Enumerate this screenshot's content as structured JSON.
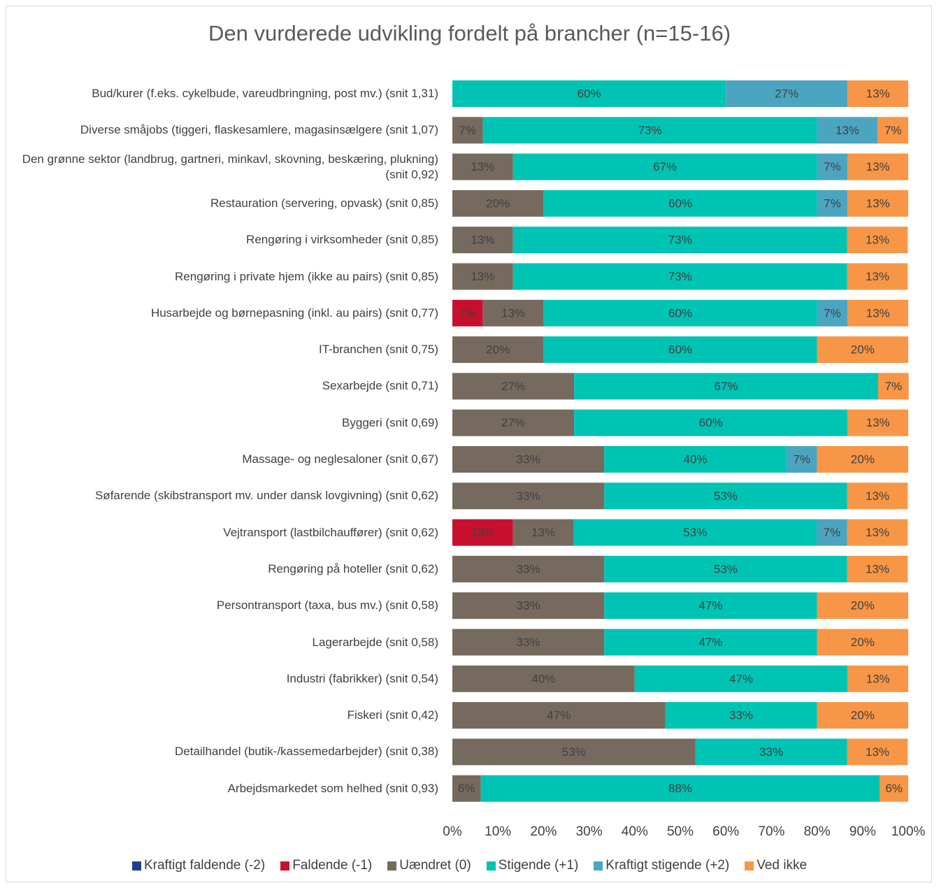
{
  "chart_data": {
    "type": "stacked_bar_horizontal",
    "title": "Den vurderede udvikling fordelt på brancher (n=15-16)",
    "categories": [
      "Bud/kurer (f.eks. cykelbude, vareudbringning, post mv.) (snit 1,31)",
      "Diverse småjobs (tiggeri, flaskesamlere, magasinsælgere (snit 1,07)",
      "Den grønne sektor (landbrug, gartneri, minkavl, skovning, beskæring, plukning) (snit 0,92)",
      "Restauration (servering, opvask) (snit 0,85)",
      "Rengøring i virksomheder (snit 0,85)",
      "Rengøring i private hjem (ikke au pairs) (snit 0,85)",
      "Husarbejde og børnepasning (inkl. au pairs) (snit 0,77)",
      "IT-branchen (snit 0,75)",
      "Sexarbejde (snit 0,71)",
      "Byggeri (snit 0,69)",
      "Massage- og neglesaloner (snit 0,67)",
      "Søfarende (skibstransport mv. under dansk lovgivning) (snit 0,62)",
      "Vejtransport (lastbilchauffører) (snit 0,62)",
      "Rengøring på hoteller (snit 0,62)",
      "Persontransport (taxa, bus mv.) (snit 0,58)",
      "Lagerarbejde (snit 0,58)",
      "Industri (fabrikker) (snit 0,54)",
      "Fiskeri (snit 0,42)",
      "Detailhandel (butik-/kassemedarbejder) (snit 0,38)",
      "Arbejdsmarkedet som helhed (snit 0,93)"
    ],
    "series": [
      {
        "name": "Kraftigt faldende (-2)",
        "color": "#1f3f8c",
        "values": [
          0,
          0,
          0,
          0,
          0,
          0,
          0,
          0,
          0,
          0,
          0,
          0,
          0,
          0,
          0,
          0,
          0,
          0,
          0,
          0
        ]
      },
      {
        "name": "Faldende (-1)",
        "color": "#c8102e",
        "values": [
          0,
          0,
          0,
          0,
          0,
          0,
          6.7,
          0,
          0,
          0,
          0,
          0,
          13.3,
          0,
          0,
          0,
          0,
          0,
          0,
          0
        ],
        "value_labels": [
          null,
          null,
          null,
          null,
          null,
          null,
          "7%",
          null,
          null,
          null,
          null,
          null,
          "13%",
          null,
          null,
          null,
          null,
          null,
          null,
          null
        ]
      },
      {
        "name": "Uændret (0)",
        "color": "#766a5f",
        "values": [
          0,
          6.7,
          13.3,
          20,
          13.3,
          13.3,
          13.3,
          20,
          26.7,
          26.7,
          33.3,
          33.3,
          13.3,
          33.3,
          33.3,
          33.3,
          40,
          46.7,
          53.3,
          6.25
        ],
        "value_labels": [
          null,
          "7%",
          "13%",
          "20%",
          "13%",
          "13%",
          "13%",
          "20%",
          "27%",
          "27%",
          "33%",
          "33%",
          "13%",
          "33%",
          "33%",
          "33%",
          "40%",
          "47%",
          "53%",
          "6%"
        ]
      },
      {
        "name": "Stigende (+1)",
        "color": "#00c4b3",
        "values": [
          60,
          73.3,
          66.7,
          60,
          73.3,
          73.3,
          60,
          60,
          66.7,
          60,
          40,
          53.3,
          53.3,
          53.3,
          46.7,
          46.7,
          46.7,
          33.3,
          33.3,
          87.5
        ],
        "value_labels": [
          "60%",
          "73%",
          "67%",
          "60%",
          "73%",
          "73%",
          "60%",
          "60%",
          "67%",
          "60%",
          "40%",
          "53%",
          "53%",
          "53%",
          "47%",
          "47%",
          "47%",
          "33%",
          "33%",
          "88%"
        ]
      },
      {
        "name": "Kraftigt stigende (+2)",
        "color": "#4ba5c1",
        "values": [
          26.7,
          13.3,
          6.7,
          6.7,
          0,
          0,
          6.7,
          0,
          0,
          0,
          6.7,
          0,
          6.7,
          0,
          0,
          0,
          0,
          0,
          0,
          0
        ],
        "value_labels": [
          "27%",
          "13%",
          "7%",
          "7%",
          null,
          null,
          "7%",
          null,
          null,
          null,
          "7%",
          null,
          "7%",
          null,
          null,
          null,
          null,
          null,
          null,
          null
        ]
      },
      {
        "name": "Ved ikke",
        "color": "#f79646",
        "values": [
          13.3,
          6.7,
          13.3,
          13.3,
          13.3,
          13.3,
          13.3,
          20,
          6.7,
          13.3,
          20,
          13.3,
          13.3,
          13.3,
          20,
          20,
          13.3,
          20,
          13.3,
          6.25
        ],
        "value_labels": [
          "13%",
          "7%",
          "13%",
          "13%",
          "13%",
          "13%",
          "13%",
          "20%",
          "7%",
          "13%",
          "20%",
          "13%",
          "13%",
          "13%",
          "20%",
          "20%",
          "13%",
          "20%",
          "13%",
          "6%"
        ]
      }
    ],
    "xlim": [
      0,
      100
    ],
    "xticks": [
      {
        "value": 0,
        "label": "0%"
      },
      {
        "value": 10,
        "label": "10%"
      },
      {
        "value": 20,
        "label": "20%"
      },
      {
        "value": 30,
        "label": "30%"
      },
      {
        "value": 40,
        "label": "40%"
      },
      {
        "value": 50,
        "label": "50%"
      },
      {
        "value": 60,
        "label": "60%"
      },
      {
        "value": 70,
        "label": "70%"
      },
      {
        "value": 80,
        "label": "80%"
      },
      {
        "value": 90,
        "label": "90%"
      },
      {
        "value": 100,
        "label": "100%"
      }
    ],
    "legend": "bottom"
  }
}
